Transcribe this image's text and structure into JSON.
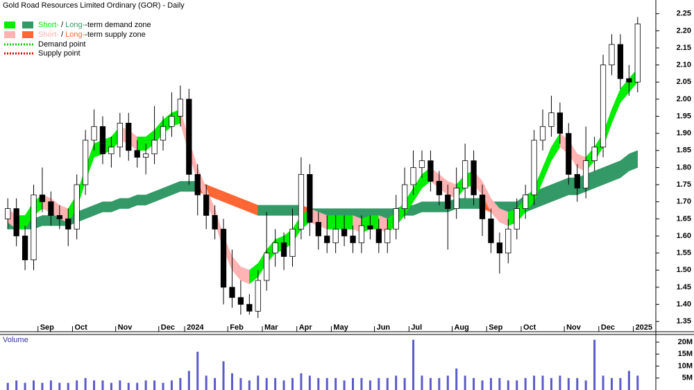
{
  "chart_data": {
    "type": "candlestick",
    "title": "Gold Road Resources Limited Ordinary (GOR) - Daily",
    "categories": [
      null,
      null,
      null,
      null,
      "Sep",
      null,
      null,
      null,
      "Oct",
      null,
      null,
      null,
      null,
      "Nov",
      null,
      null,
      null,
      null,
      "Dec",
      null,
      null,
      "2024",
      null,
      null,
      null,
      null,
      "Feb",
      null,
      null,
      null,
      "Mar",
      null,
      null,
      null,
      "Apr",
      null,
      null,
      null,
      "May",
      null,
      null,
      null,
      null,
      "Jun",
      null,
      null,
      null,
      "Jul",
      null,
      null,
      null,
      null,
      "Aug",
      null,
      null,
      null,
      "Sep",
      null,
      null,
      null,
      "Oct",
      null,
      null,
      null,
      null,
      "Nov",
      null,
      null,
      null,
      "Dec",
      null,
      null,
      null,
      "2025"
    ],
    "open": [
      1.65,
      1.68,
      1.6,
      1.53,
      1.72,
      1.7,
      1.66,
      1.65,
      1.62,
      1.75,
      1.88,
      1.92,
      1.84,
      1.86,
      1.93,
      1.85,
      1.83,
      1.84,
      1.88,
      1.92,
      1.95,
      2.0,
      1.78,
      1.72,
      1.66,
      1.62,
      1.45,
      1.42,
      1.4,
      1.38,
      1.47,
      1.55,
      1.58,
      1.54,
      1.62,
      1.78,
      1.64,
      1.6,
      1.58,
      1.62,
      1.6,
      1.58,
      1.63,
      1.62,
      1.58,
      1.62,
      1.68,
      1.75,
      1.8,
      1.82,
      1.76,
      1.72,
      1.68,
      1.74,
      1.82,
      1.72,
      1.65,
      1.58,
      1.55,
      1.62,
      1.68,
      1.72,
      1.88,
      1.92,
      1.96,
      1.9,
      1.78,
      1.74,
      1.82,
      1.86,
      2.1,
      2.16,
      2.06,
      2.05
    ],
    "high": [
      1.71,
      1.71,
      1.63,
      1.75,
      1.8,
      1.73,
      1.69,
      1.68,
      1.78,
      1.91,
      1.97,
      1.95,
      1.89,
      1.96,
      1.96,
      1.88,
      1.87,
      1.98,
      1.95,
      2.02,
      2.04,
      2.03,
      1.81,
      1.75,
      1.69,
      1.65,
      1.56,
      1.47,
      1.43,
      1.5,
      1.67,
      1.62,
      1.61,
      1.68,
      1.83,
      1.81,
      1.67,
      1.66,
      1.66,
      1.66,
      1.63,
      1.66,
      1.66,
      1.65,
      1.65,
      1.72,
      1.8,
      1.85,
      1.85,
      1.85,
      1.79,
      1.75,
      1.8,
      1.87,
      1.85,
      1.75,
      1.68,
      1.61,
      1.65,
      1.71,
      1.75,
      1.91,
      1.97,
      2.01,
      1.99,
      1.93,
      1.81,
      1.92,
      1.89,
      2.13,
      2.19,
      2.19,
      2.1,
      2.24
    ],
    "low": [
      1.62,
      1.57,
      1.5,
      1.5,
      1.67,
      1.63,
      1.62,
      1.57,
      1.59,
      1.72,
      1.85,
      1.81,
      1.8,
      1.83,
      1.82,
      1.8,
      1.78,
      1.81,
      1.85,
      1.89,
      1.92,
      1.75,
      1.66,
      1.62,
      1.59,
      1.4,
      1.39,
      1.37,
      1.37,
      1.36,
      1.44,
      1.51,
      1.5,
      1.51,
      1.59,
      1.6,
      1.56,
      1.55,
      1.55,
      1.57,
      1.55,
      1.55,
      1.59,
      1.55,
      1.55,
      1.59,
      1.65,
      1.72,
      1.77,
      1.73,
      1.69,
      1.56,
      1.65,
      1.71,
      1.69,
      1.6,
      1.55,
      1.49,
      1.52,
      1.59,
      1.65,
      1.69,
      1.85,
      1.89,
      1.87,
      1.75,
      1.7,
      1.71,
      1.79,
      1.83,
      2.07,
      2.03,
      2.01,
      2.02
    ],
    "close": [
      1.68,
      1.6,
      1.53,
      1.72,
      1.7,
      1.66,
      1.65,
      1.62,
      1.75,
      1.88,
      1.92,
      1.84,
      1.86,
      1.93,
      1.85,
      1.83,
      1.84,
      1.88,
      1.92,
      1.95,
      2.0,
      1.78,
      1.72,
      1.66,
      1.62,
      1.45,
      1.42,
      1.4,
      1.38,
      1.47,
      1.55,
      1.58,
      1.54,
      1.62,
      1.78,
      1.64,
      1.6,
      1.58,
      1.62,
      1.6,
      1.58,
      1.63,
      1.62,
      1.58,
      1.62,
      1.68,
      1.75,
      1.8,
      1.82,
      1.76,
      1.72,
      1.68,
      1.74,
      1.82,
      1.72,
      1.65,
      1.58,
      1.55,
      1.62,
      1.68,
      1.72,
      1.88,
      1.92,
      1.96,
      1.9,
      1.78,
      1.74,
      1.82,
      1.86,
      2.1,
      2.16,
      2.06,
      2.05,
      2.22
    ],
    "short_zone": {
      "demand_color": "#00ee00",
      "supply_color": "#ffb3b3",
      "upper": [
        1.68,
        1.66,
        1.66,
        1.7,
        1.72,
        1.71,
        1.69,
        1.68,
        1.72,
        1.8,
        1.87,
        1.88,
        1.89,
        1.92,
        1.91,
        1.89,
        1.89,
        1.91,
        1.94,
        1.96,
        1.97,
        1.88,
        1.8,
        1.74,
        1.68,
        1.6,
        1.54,
        1.51,
        1.5,
        1.52,
        1.56,
        1.59,
        1.6,
        1.62,
        1.66,
        1.68,
        1.67,
        1.66,
        1.66,
        1.66,
        1.66,
        1.65,
        1.66,
        1.66,
        1.65,
        1.67,
        1.7,
        1.74,
        1.78,
        1.8,
        1.78,
        1.76,
        1.75,
        1.78,
        1.79,
        1.76,
        1.71,
        1.68,
        1.67,
        1.68,
        1.71,
        1.74,
        1.8,
        1.86,
        1.9,
        1.88,
        1.84,
        1.83,
        1.86,
        1.9,
        1.97,
        2.03,
        2.06,
        2.09
      ],
      "lower": [
        1.64,
        1.62,
        1.62,
        1.66,
        1.68,
        1.67,
        1.65,
        1.64,
        1.68,
        1.76,
        1.83,
        1.84,
        1.85,
        1.88,
        1.87,
        1.85,
        1.85,
        1.87,
        1.9,
        1.92,
        1.93,
        1.84,
        1.76,
        1.7,
        1.64,
        1.56,
        1.5,
        1.47,
        1.46,
        1.48,
        1.52,
        1.55,
        1.56,
        1.58,
        1.62,
        1.64,
        1.63,
        1.62,
        1.62,
        1.62,
        1.62,
        1.61,
        1.62,
        1.62,
        1.61,
        1.63,
        1.66,
        1.7,
        1.74,
        1.76,
        1.74,
        1.72,
        1.71,
        1.74,
        1.75,
        1.72,
        1.67,
        1.64,
        1.63,
        1.64,
        1.67,
        1.7,
        1.76,
        1.82,
        1.86,
        1.84,
        1.8,
        1.79,
        1.82,
        1.86,
        1.93,
        1.99,
        2.02,
        2.05
      ]
    },
    "long_zone": {
      "demand_color": "#339966",
      "supply_color": "#ff6633",
      "upper": [
        1.65,
        1.65,
        1.65,
        1.65,
        1.66,
        1.66,
        1.66,
        1.66,
        1.67,
        1.68,
        1.69,
        1.7,
        1.7,
        1.71,
        1.71,
        1.72,
        1.72,
        1.73,
        1.74,
        1.75,
        1.76,
        1.76,
        1.76,
        1.75,
        1.74,
        1.73,
        1.72,
        1.71,
        1.7,
        1.69,
        1.69,
        1.69,
        1.69,
        1.69,
        1.69,
        1.68,
        1.68,
        1.68,
        1.68,
        1.68,
        1.68,
        1.68,
        1.68,
        1.68,
        1.68,
        1.68,
        1.69,
        1.69,
        1.7,
        1.7,
        1.7,
        1.7,
        1.71,
        1.71,
        1.71,
        1.71,
        1.7,
        1.7,
        1.7,
        1.7,
        1.72,
        1.73,
        1.74,
        1.75,
        1.76,
        1.77,
        1.77,
        1.78,
        1.79,
        1.8,
        1.81,
        1.82,
        1.84,
        1.85
      ],
      "lower": [
        1.62,
        1.62,
        1.62,
        1.62,
        1.63,
        1.63,
        1.63,
        1.63,
        1.64,
        1.65,
        1.66,
        1.67,
        1.67,
        1.68,
        1.68,
        1.69,
        1.69,
        1.7,
        1.71,
        1.72,
        1.73,
        1.73,
        1.73,
        1.72,
        1.71,
        1.7,
        1.69,
        1.68,
        1.67,
        1.66,
        1.66,
        1.66,
        1.66,
        1.66,
        1.66,
        1.65,
        1.65,
        1.65,
        1.65,
        1.65,
        1.65,
        1.65,
        1.65,
        1.65,
        1.65,
        1.65,
        1.66,
        1.66,
        1.67,
        1.67,
        1.67,
        1.67,
        1.68,
        1.68,
        1.68,
        1.68,
        1.67,
        1.67,
        1.67,
        1.67,
        1.67,
        1.68,
        1.69,
        1.7,
        1.71,
        1.72,
        1.72,
        1.73,
        1.74,
        1.75,
        1.76,
        1.77,
        1.79,
        1.8
      ]
    },
    "legend": {
      "zones": [
        [
          "Short-",
          " / ",
          "Long-",
          "-term demand zone"
        ],
        [
          "Short-",
          " / ",
          "Long-",
          "-term supply zone"
        ]
      ],
      "points": [
        {
          "label": "Demand point",
          "color": "#00cc00"
        },
        {
          "label": "Supply point",
          "color": "#dd0000"
        }
      ]
    },
    "ylim": [
      1.32,
      2.29
    ],
    "yticks": [
      1.35,
      {
        "value": 1.4,
        "label": "1.40"
      },
      1.45,
      {
        "value": 1.5,
        "label": "1.50"
      },
      1.55,
      {
        "value": 1.6,
        "label": "1.60"
      },
      1.65,
      {
        "value": 1.7,
        "label": "1.70"
      },
      1.75,
      {
        "value": 1.8,
        "label": "1.80"
      },
      1.85,
      {
        "value": 1.9,
        "label": "1.90"
      },
      1.95,
      {
        "value": 2.0,
        "label": "2.00"
      },
      2.05,
      {
        "value": 2.1,
        "label": "2.10"
      },
      2.15,
      {
        "value": 2.2,
        "label": "2.20"
      },
      2.25
    ],
    "volume": {
      "label": "Volume",
      "color": "#5a5ac8",
      "ylim": [
        0,
        23.2
      ],
      "yticks": [
        {
          "value": 5,
          "label": "5M"
        },
        {
          "value": 10,
          "label": "10M"
        },
        {
          "value": 15,
          "label": "15M"
        },
        {
          "value": 20,
          "label": "20M"
        }
      ],
      "values": [
        3,
        4,
        3,
        4,
        3,
        4,
        3,
        3,
        4,
        5,
        4,
        4,
        3,
        4,
        3,
        3,
        4,
        4,
        3,
        4,
        5,
        8,
        16,
        6,
        5,
        12,
        7,
        5,
        4,
        6,
        5,
        5,
        4,
        5,
        7,
        6,
        5,
        5,
        5,
        4,
        5,
        5,
        4,
        5,
        5,
        6,
        5,
        21,
        6,
        5,
        5,
        6,
        9,
        6,
        5,
        4,
        5,
        5,
        4,
        4,
        5,
        6,
        6,
        5,
        6,
        5,
        5,
        4,
        21,
        6,
        5,
        5,
        8,
        6
      ]
    }
  }
}
